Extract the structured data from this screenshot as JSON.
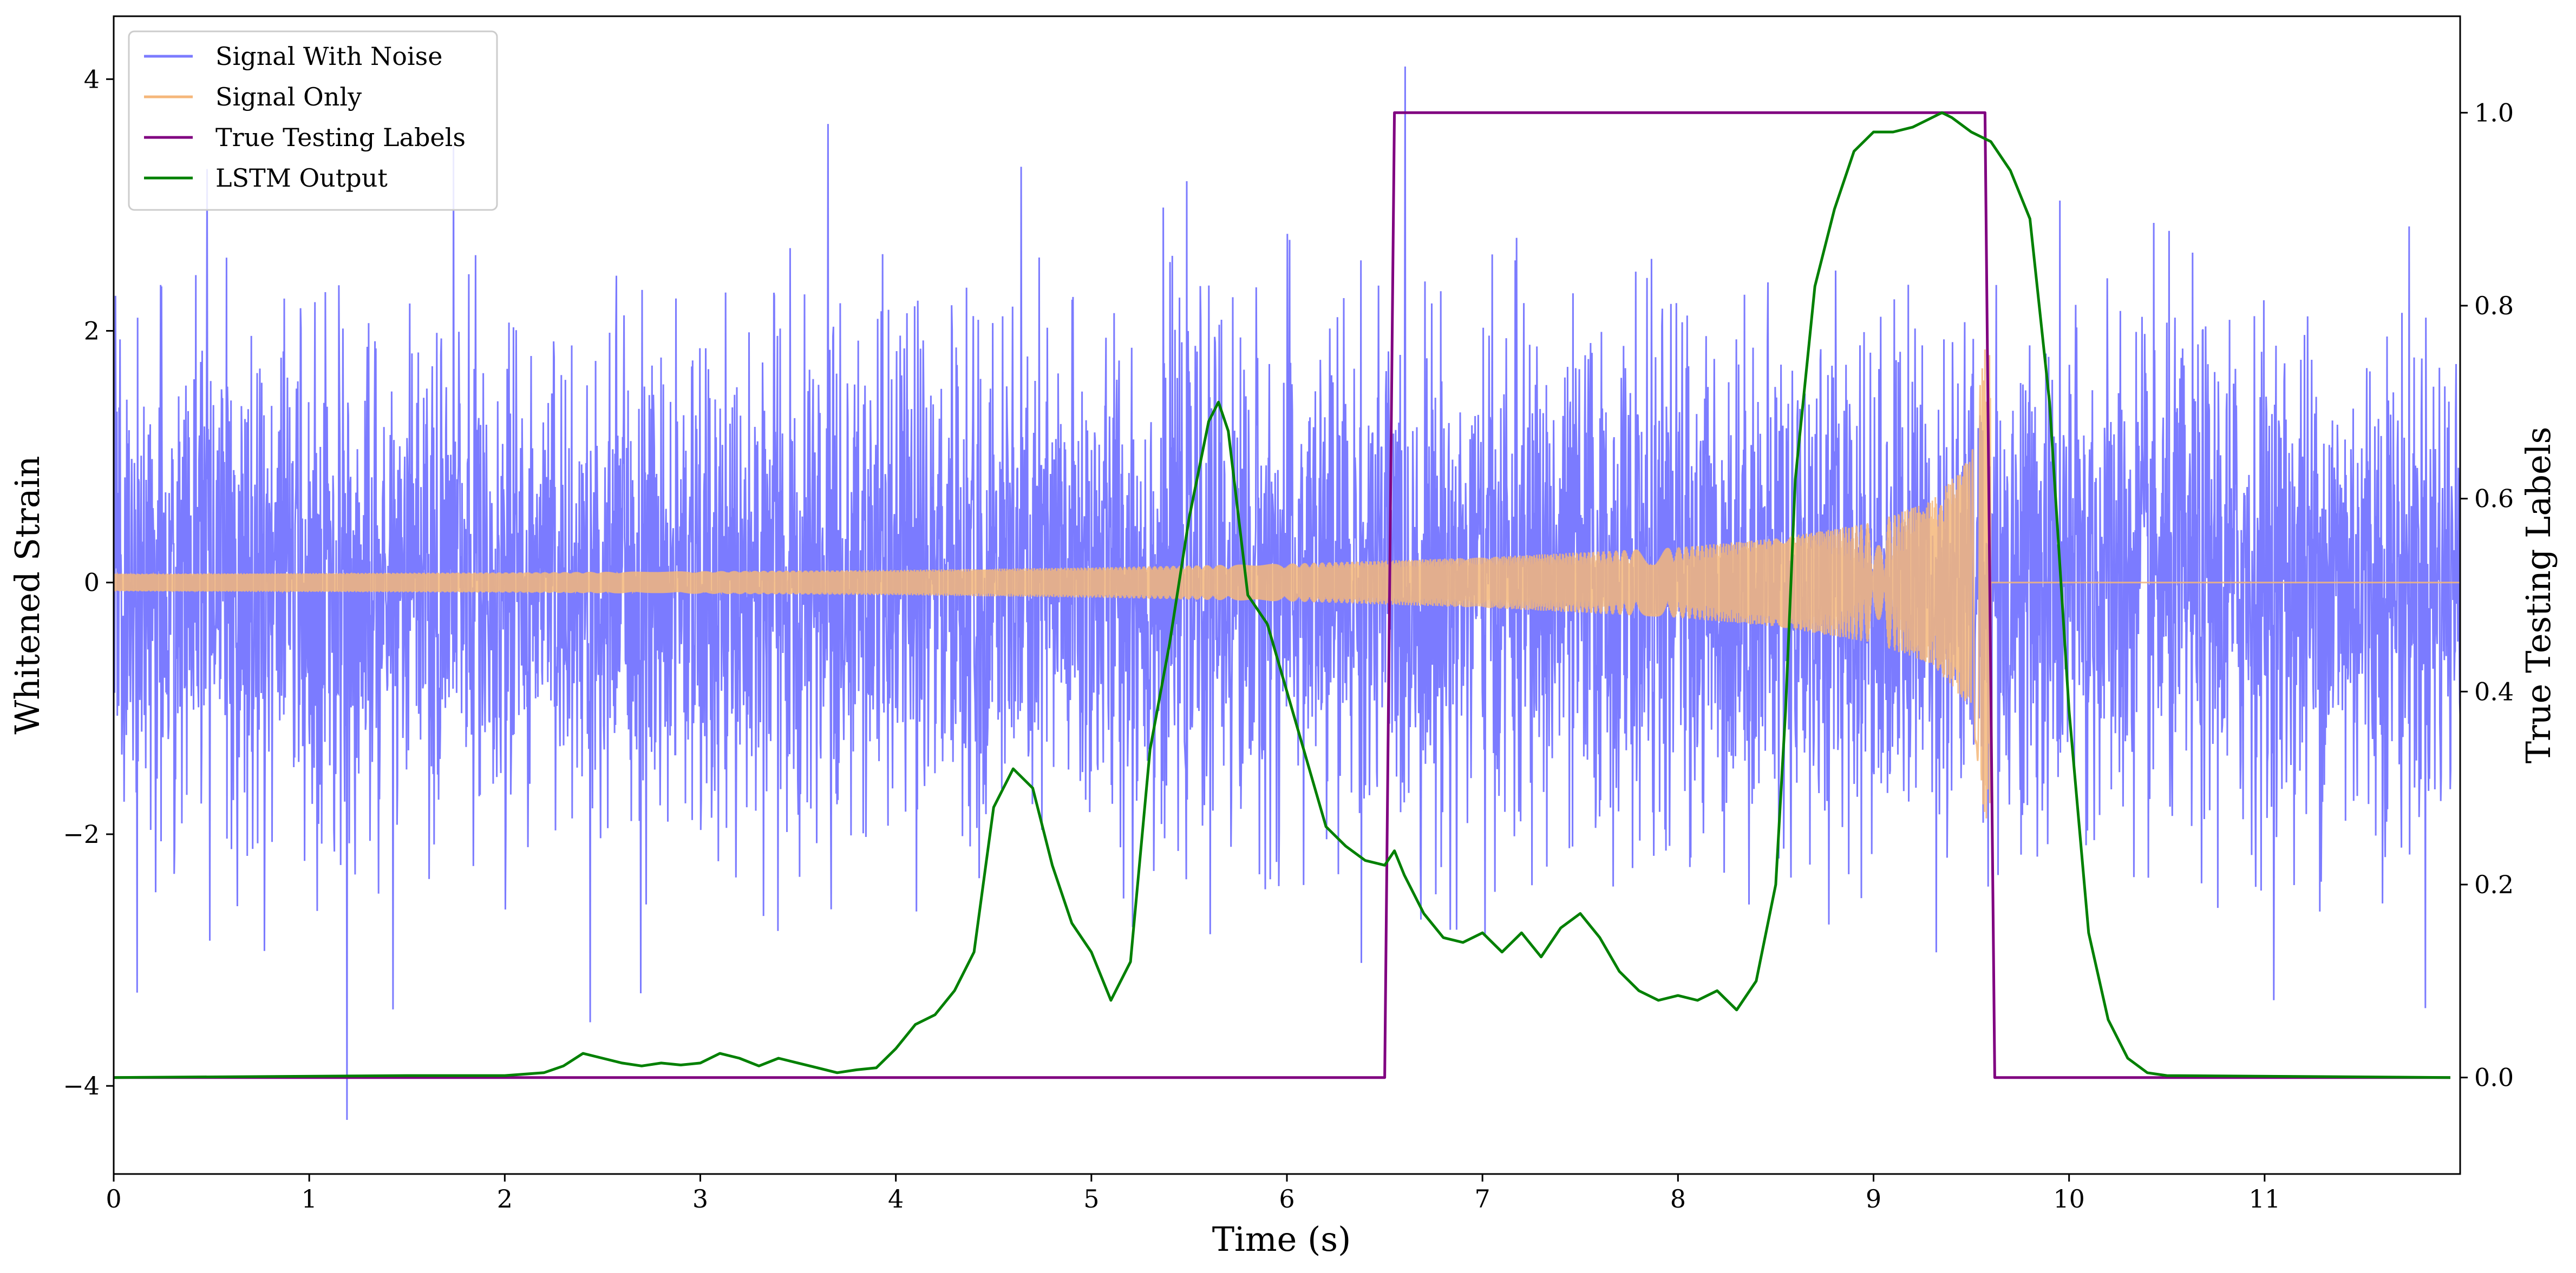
{
  "chart_data": {
    "type": "line",
    "title": "",
    "xlabel": "Time (s)",
    "ylabel": "Whitened Strain",
    "ylabel_right": "True Testing Labels",
    "xlim": [
      0,
      12
    ],
    "ylim": [
      -4.7,
      4.5
    ],
    "ylim_right": [
      -0.1,
      1.1
    ],
    "x_ticks": [
      0,
      1,
      2,
      3,
      4,
      5,
      6,
      7,
      8,
      9,
      10,
      11
    ],
    "x_tick_labels": [
      "0",
      "1",
      "2",
      "3",
      "4",
      "5",
      "6",
      "7",
      "8",
      "9",
      "10",
      "11"
    ],
    "y_ticks": [
      -4,
      -2,
      0,
      2,
      4
    ],
    "y_tick_labels": [
      "−4",
      "−2",
      "0",
      "2",
      "4"
    ],
    "y_ticks_right": [
      0.0,
      0.2,
      0.4,
      0.6,
      0.8,
      1.0
    ],
    "y_tick_labels_right": [
      "0.0",
      "0.2",
      "0.4",
      "0.6",
      "0.8",
      "1.0"
    ],
    "legend_placement": "top-left",
    "grid": false,
    "series": [
      {
        "name": "Signal With Noise",
        "color": "#7b7bff",
        "axis": "left",
        "kind": "noise",
        "noise_std": 1.0,
        "noise_range": [
          -4.27,
          4.1
        ]
      },
      {
        "name": "Signal Only",
        "color": "#f5b77a",
        "axis": "left",
        "kind": "chirp",
        "envelope": {
          "x": [
            0,
            2,
            4,
            5,
            6,
            7,
            8,
            8.5,
            9,
            9.3,
            9.5,
            9.57
          ],
          "y": [
            0.07,
            0.08,
            0.1,
            0.12,
            0.15,
            0.2,
            0.28,
            0.35,
            0.48,
            0.65,
            1.0,
            1.9
          ]
        },
        "end_x": 9.6
      },
      {
        "name": "True Testing Labels",
        "color": "#800080",
        "axis": "right",
        "x": [
          0,
          6.5,
          6.55,
          9.57,
          9.62,
          11.95
        ],
        "y": [
          0,
          0,
          1,
          1,
          0,
          0
        ]
      },
      {
        "name": "LSTM Output",
        "color": "#008000",
        "axis": "right",
        "x": [
          0,
          1.5,
          2.0,
          2.2,
          2.3,
          2.4,
          2.5,
          2.6,
          2.7,
          2.8,
          2.9,
          3.0,
          3.1,
          3.2,
          3.3,
          3.4,
          3.5,
          3.6,
          3.7,
          3.8,
          3.9,
          4.0,
          4.1,
          4.2,
          4.3,
          4.4,
          4.5,
          4.6,
          4.7,
          4.8,
          4.9,
          5.0,
          5.1,
          5.2,
          5.3,
          5.4,
          5.5,
          5.6,
          5.65,
          5.7,
          5.8,
          5.9,
          6.0,
          6.1,
          6.2,
          6.3,
          6.4,
          6.5,
          6.55,
          6.6,
          6.7,
          6.8,
          6.9,
          7.0,
          7.1,
          7.2,
          7.3,
          7.4,
          7.5,
          7.6,
          7.7,
          7.8,
          7.9,
          8.0,
          8.1,
          8.2,
          8.3,
          8.4,
          8.5,
          8.55,
          8.6,
          8.7,
          8.8,
          8.9,
          9.0,
          9.1,
          9.2,
          9.3,
          9.35,
          9.4,
          9.5,
          9.6,
          9.7,
          9.8,
          9.9,
          10.0,
          10.1,
          10.2,
          10.3,
          10.4,
          10.5,
          11.95
        ],
        "y": [
          0,
          0.002,
          0.002,
          0.005,
          0.012,
          0.025,
          0.02,
          0.015,
          0.012,
          0.015,
          0.013,
          0.015,
          0.025,
          0.02,
          0.012,
          0.02,
          0.015,
          0.01,
          0.005,
          0.008,
          0.01,
          0.03,
          0.055,
          0.065,
          0.09,
          0.13,
          0.28,
          0.32,
          0.3,
          0.22,
          0.16,
          0.13,
          0.08,
          0.12,
          0.34,
          0.45,
          0.58,
          0.68,
          0.7,
          0.67,
          0.5,
          0.47,
          0.4,
          0.33,
          0.26,
          0.24,
          0.225,
          0.22,
          0.235,
          0.21,
          0.17,
          0.145,
          0.14,
          0.15,
          0.13,
          0.15,
          0.125,
          0.155,
          0.17,
          0.145,
          0.11,
          0.09,
          0.08,
          0.085,
          0.08,
          0.09,
          0.07,
          0.1,
          0.2,
          0.38,
          0.62,
          0.82,
          0.9,
          0.96,
          0.98,
          0.98,
          0.985,
          0.995,
          1.0,
          0.995,
          0.98,
          0.97,
          0.94,
          0.89,
          0.7,
          0.38,
          0.15,
          0.06,
          0.02,
          0.005,
          0.002,
          0.0
        ]
      }
    ]
  }
}
